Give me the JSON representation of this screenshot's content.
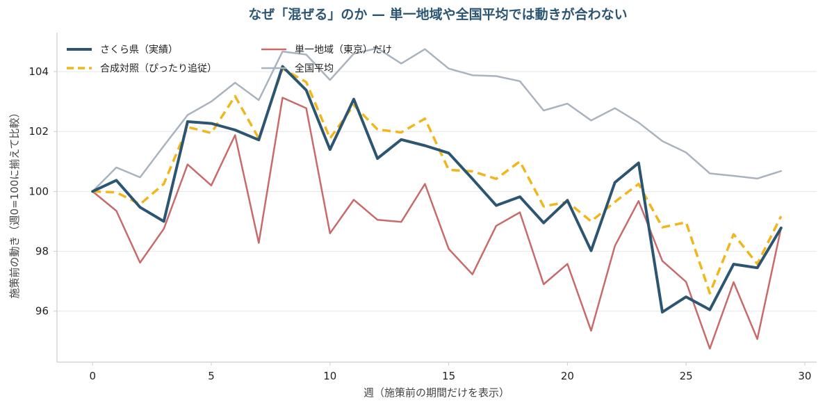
{
  "chart_data": {
    "type": "line",
    "title": "なぜ「混ぜる」のか — 単一地域や全国平均では動きが合わない",
    "xlabel": "週（施策前の期間だけを表示）",
    "ylabel": "施策前の動き（週0=100に揃えて比較）",
    "xlim": [
      -1.5,
      30.5
    ],
    "ylim": [
      94.3,
      105.3
    ],
    "xticks": [
      0,
      5,
      10,
      15,
      20,
      25,
      30
    ],
    "yticks": [
      96,
      98,
      100,
      102,
      104
    ],
    "grid": "horizontal",
    "legend_position": "top-left",
    "x": [
      0,
      1,
      2,
      3,
      4,
      5,
      6,
      7,
      8,
      9,
      10,
      11,
      12,
      13,
      14,
      15,
      16,
      17,
      18,
      19,
      20,
      21,
      22,
      23,
      24,
      25,
      26,
      27,
      28,
      29
    ],
    "series": [
      {
        "name": "さくら県（実績）",
        "color": "#2b5571",
        "style": "solid-thick",
        "values": [
          100.0,
          100.37,
          99.47,
          99.0,
          102.33,
          102.27,
          102.05,
          101.72,
          104.17,
          103.38,
          101.4,
          103.08,
          101.1,
          101.73,
          101.53,
          101.28,
          100.42,
          99.53,
          99.82,
          98.95,
          99.7,
          98.02,
          100.3,
          100.95,
          95.97,
          96.48,
          96.05,
          97.57,
          97.45,
          98.78
        ]
      },
      {
        "name": "合成対照（ぴったり追従）",
        "color": "#f0b61c",
        "style": "dashed",
        "values": [
          100.0,
          99.97,
          99.57,
          100.25,
          102.15,
          101.95,
          103.18,
          101.77,
          104.1,
          103.65,
          101.77,
          102.88,
          102.07,
          101.97,
          102.43,
          100.72,
          100.67,
          100.42,
          101.0,
          99.5,
          99.65,
          99.0,
          99.65,
          100.25,
          98.8,
          98.97,
          96.6,
          98.57,
          97.58,
          99.17
        ]
      },
      {
        "name": "単一地域（東京）だけ",
        "color": "#c96a6a",
        "style": "solid",
        "values": [
          100.0,
          99.35,
          97.62,
          98.75,
          100.9,
          100.2,
          101.88,
          98.28,
          103.13,
          102.78,
          98.6,
          99.72,
          99.05,
          98.98,
          100.25,
          98.08,
          97.23,
          98.85,
          99.3,
          96.9,
          97.58,
          95.35,
          98.18,
          99.68,
          97.68,
          96.98,
          94.75,
          96.97,
          95.07,
          98.78
        ]
      },
      {
        "name": "全国平均",
        "color": "#a9b3bd",
        "style": "solid",
        "values": [
          100.0,
          100.8,
          100.47,
          101.52,
          102.55,
          103.0,
          103.63,
          103.05,
          104.67,
          104.57,
          103.72,
          104.6,
          104.78,
          104.27,
          104.75,
          104.1,
          103.88,
          103.85,
          103.68,
          102.7,
          102.93,
          102.37,
          102.78,
          102.3,
          101.68,
          101.3,
          100.6,
          100.52,
          100.43,
          100.68
        ]
      }
    ]
  },
  "colors": {
    "title": "#2b5571",
    "axis": "#cccccc",
    "grid": "#e6e6e6"
  }
}
